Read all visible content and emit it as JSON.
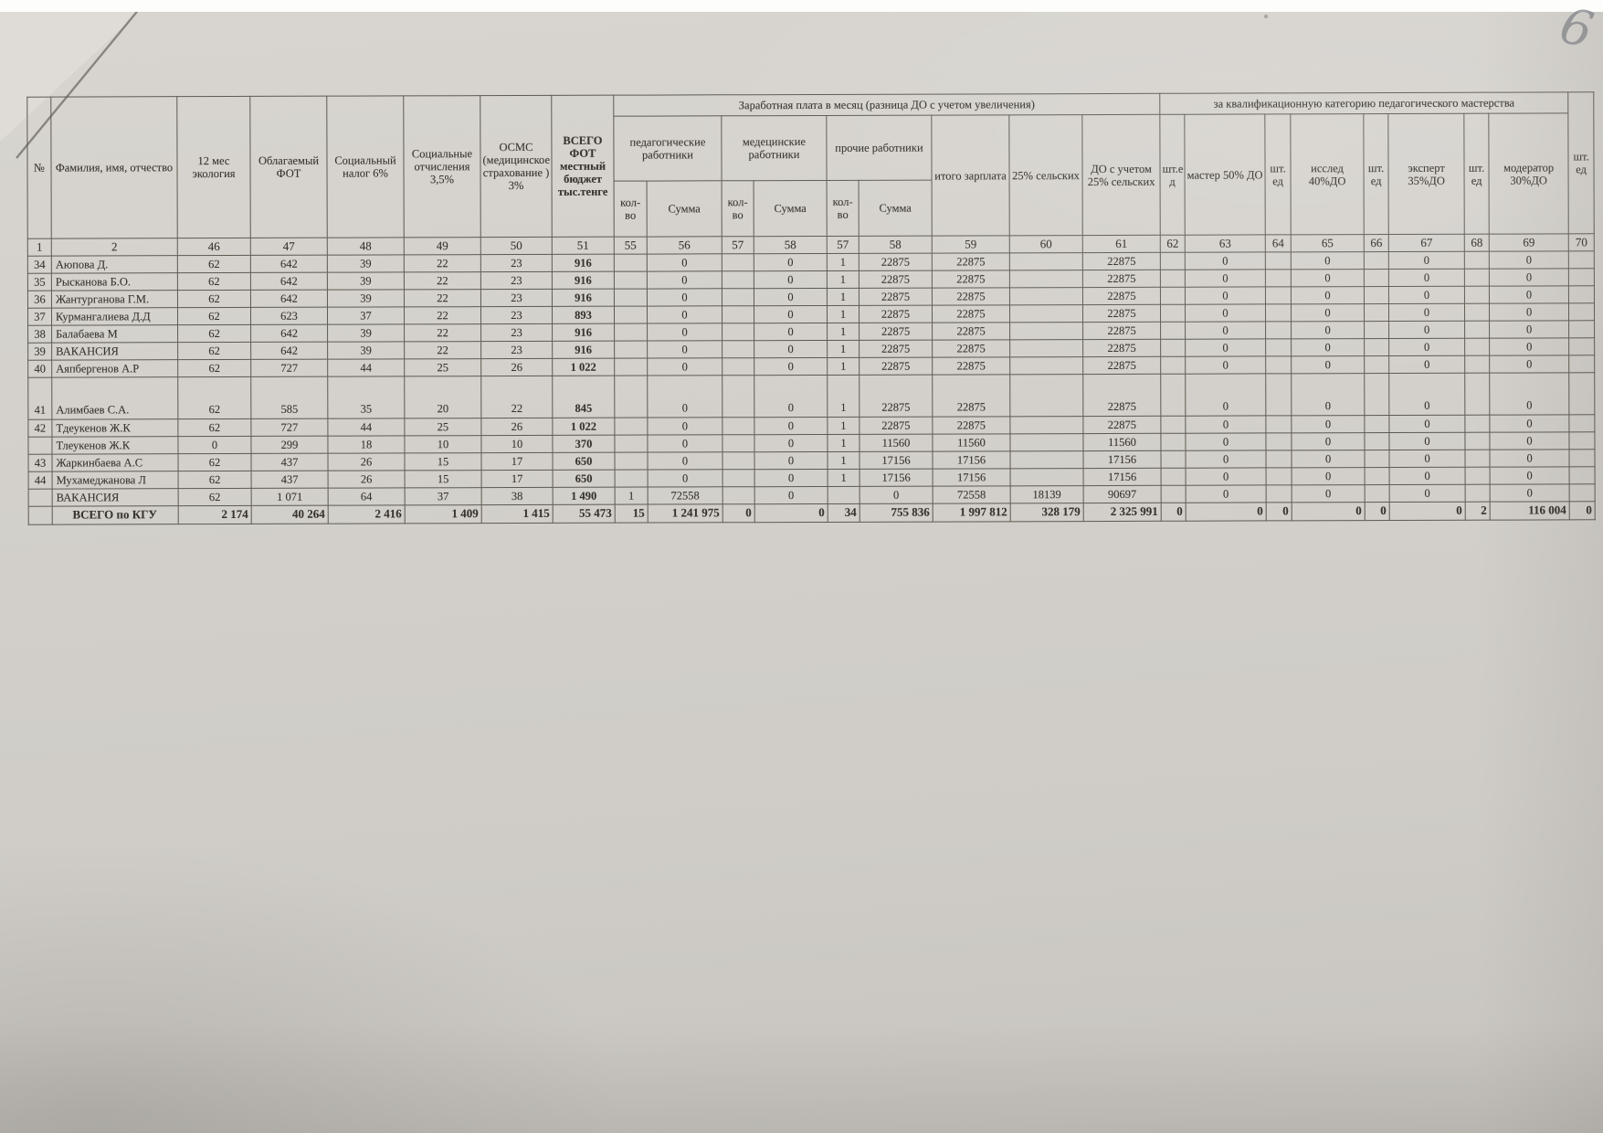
{
  "page": {
    "handwritten_mark": "6"
  },
  "table": {
    "banner_salary": "Заработная плата в месяц (разница ДО с учетом увеличения)",
    "banner_qualification": "за квалификационную категорию педагогического мастерства",
    "columns": {
      "num": "№",
      "name": "Фамилия, имя, отчество",
      "ecology": "12 мес экология",
      "taxable": "Облагаемый ФОТ",
      "social_tax": "Социальный налог 6%",
      "social_ded": "Социальные отчисления 3,5%",
      "osms": "ОСМС (медицинское страхование ) 3%",
      "total_fot": "ВСЕГО ФОТ местный бюджет тыс.тенге",
      "ped": "педагогические работники",
      "med": "медецинские работники",
      "other": "прочие работники",
      "qty": "кол-во",
      "sum": "Сумма",
      "itogo": "итого зарплата",
      "rural25": "25% сельских",
      "do_rural": "ДО с учетом 25% сельских",
      "unit": "шт. ед",
      "unit_first": "шт.е д",
      "master": "мастер 50% ДО",
      "issled": "исслед 40%ДО",
      "expert": "эксперт 35%ДО",
      "moderator": "модератор 30%ДО"
    },
    "column_numbers": [
      "1",
      "2",
      "46",
      "47",
      "48",
      "49",
      "50",
      "51",
      "55",
      "56",
      "57",
      "58",
      "57",
      "58",
      "59",
      "60",
      "61",
      "62",
      "63",
      "64",
      "65",
      "66",
      "67",
      "68",
      "69",
      "70"
    ],
    "rows": [
      {
        "num": "34",
        "name": "Аюпова Д.",
        "tall": false,
        "cells": [
          "62",
          "642",
          "39",
          "22",
          "23",
          "916",
          "",
          "0",
          "",
          "0",
          "1",
          "22875",
          "22875",
          "",
          "22875",
          "",
          "0",
          "",
          "0",
          "",
          "0",
          "",
          "0",
          ""
        ]
      },
      {
        "num": "35",
        "name": "Рысканова Б.О.",
        "tall": false,
        "cells": [
          "62",
          "642",
          "39",
          "22",
          "23",
          "916",
          "",
          "0",
          "",
          "0",
          "1",
          "22875",
          "22875",
          "",
          "22875",
          "",
          "0",
          "",
          "0",
          "",
          "0",
          "",
          "0",
          ""
        ]
      },
      {
        "num": "36",
        "name": "Жантурганова Г.М.",
        "tall": false,
        "cells": [
          "62",
          "642",
          "39",
          "22",
          "23",
          "916",
          "",
          "0",
          "",
          "0",
          "1",
          "22875",
          "22875",
          "",
          "22875",
          "",
          "0",
          "",
          "0",
          "",
          "0",
          "",
          "0",
          ""
        ]
      },
      {
        "num": "37",
        "name": "Курмангалиева Д.Д",
        "tall": false,
        "cells": [
          "62",
          "623",
          "37",
          "22",
          "23",
          "893",
          "",
          "0",
          "",
          "0",
          "1",
          "22875",
          "22875",
          "",
          "22875",
          "",
          "0",
          "",
          "0",
          "",
          "0",
          "",
          "0",
          ""
        ]
      },
      {
        "num": "38",
        "name": "Балабаева М",
        "tall": false,
        "cells": [
          "62",
          "642",
          "39",
          "22",
          "23",
          "916",
          "",
          "0",
          "",
          "0",
          "1",
          "22875",
          "22875",
          "",
          "22875",
          "",
          "0",
          "",
          "0",
          "",
          "0",
          "",
          "0",
          ""
        ]
      },
      {
        "num": "39",
        "name": "ВАКАНСИЯ",
        "tall": false,
        "cells": [
          "62",
          "642",
          "39",
          "22",
          "23",
          "916",
          "",
          "0",
          "",
          "0",
          "1",
          "22875",
          "22875",
          "",
          "22875",
          "",
          "0",
          "",
          "0",
          "",
          "0",
          "",
          "0",
          ""
        ]
      },
      {
        "num": "40",
        "name": "Аяпбергенов А.Р",
        "tall": false,
        "cells": [
          "62",
          "727",
          "44",
          "25",
          "26",
          "1 022",
          "",
          "0",
          "",
          "0",
          "1",
          "22875",
          "22875",
          "",
          "22875",
          "",
          "0",
          "",
          "0",
          "",
          "0",
          "",
          "0",
          ""
        ]
      },
      {
        "num": "41",
        "name": "Алимбаев С.А.",
        "tall": true,
        "cells": [
          "62",
          "585",
          "35",
          "20",
          "22",
          "845",
          "",
          "0",
          "",
          "0",
          "1",
          "22875",
          "22875",
          "",
          "22875",
          "",
          "0",
          "",
          "0",
          "",
          "0",
          "",
          "0",
          ""
        ]
      },
      {
        "num": "42",
        "name": "Тдеукенов Ж.К",
        "tall": false,
        "cells": [
          "62",
          "727",
          "44",
          "25",
          "26",
          "1 022",
          "",
          "0",
          "",
          "0",
          "1",
          "22875",
          "22875",
          "",
          "22875",
          "",
          "0",
          "",
          "0",
          "",
          "0",
          "",
          "0",
          ""
        ]
      },
      {
        "num": "",
        "name": "Тлеукенов Ж.К",
        "tall": false,
        "cells": [
          "0",
          "299",
          "18",
          "10",
          "10",
          "370",
          "",
          "0",
          "",
          "0",
          "1",
          "11560",
          "11560",
          "",
          "11560",
          "",
          "0",
          "",
          "0",
          "",
          "0",
          "",
          "0",
          ""
        ]
      },
      {
        "num": "43",
        "name": "Жаркинбаева А.С",
        "tall": false,
        "cells": [
          "62",
          "437",
          "26",
          "15",
          "17",
          "650",
          "",
          "0",
          "",
          "0",
          "1",
          "17156",
          "17156",
          "",
          "17156",
          "",
          "0",
          "",
          "0",
          "",
          "0",
          "",
          "0",
          ""
        ]
      },
      {
        "num": "44",
        "name": "Мухамеджанова Л",
        "tall": false,
        "cells": [
          "62",
          "437",
          "26",
          "15",
          "17",
          "650",
          "",
          "0",
          "",
          "0",
          "1",
          "17156",
          "17156",
          "",
          "17156",
          "",
          "0",
          "",
          "0",
          "",
          "0",
          "",
          "0",
          ""
        ]
      },
      {
        "num": "",
        "name": "ВАКАНСИЯ",
        "tall": false,
        "cells": [
          "62",
          "1 071",
          "64",
          "37",
          "38",
          "1 490",
          "1",
          "72558",
          "",
          "0",
          "",
          "0",
          "72558",
          "18139",
          "90697",
          "",
          "0",
          "",
          "0",
          "",
          "0",
          "",
          "0",
          ""
        ]
      }
    ],
    "total_row": {
      "label": "ВСЕГО по КГУ",
      "cells": [
        "2 174",
        "40 264",
        "2 416",
        "1 409",
        "1 415",
        "55 473",
        "15",
        "1 241 975",
        "0",
        "0",
        "34",
        "755 836",
        "1 997 812",
        "328 179",
        "2 325 991",
        "0",
        "0",
        "0",
        "0",
        "0",
        "0",
        "2",
        "116 004",
        "0"
      ]
    }
  }
}
